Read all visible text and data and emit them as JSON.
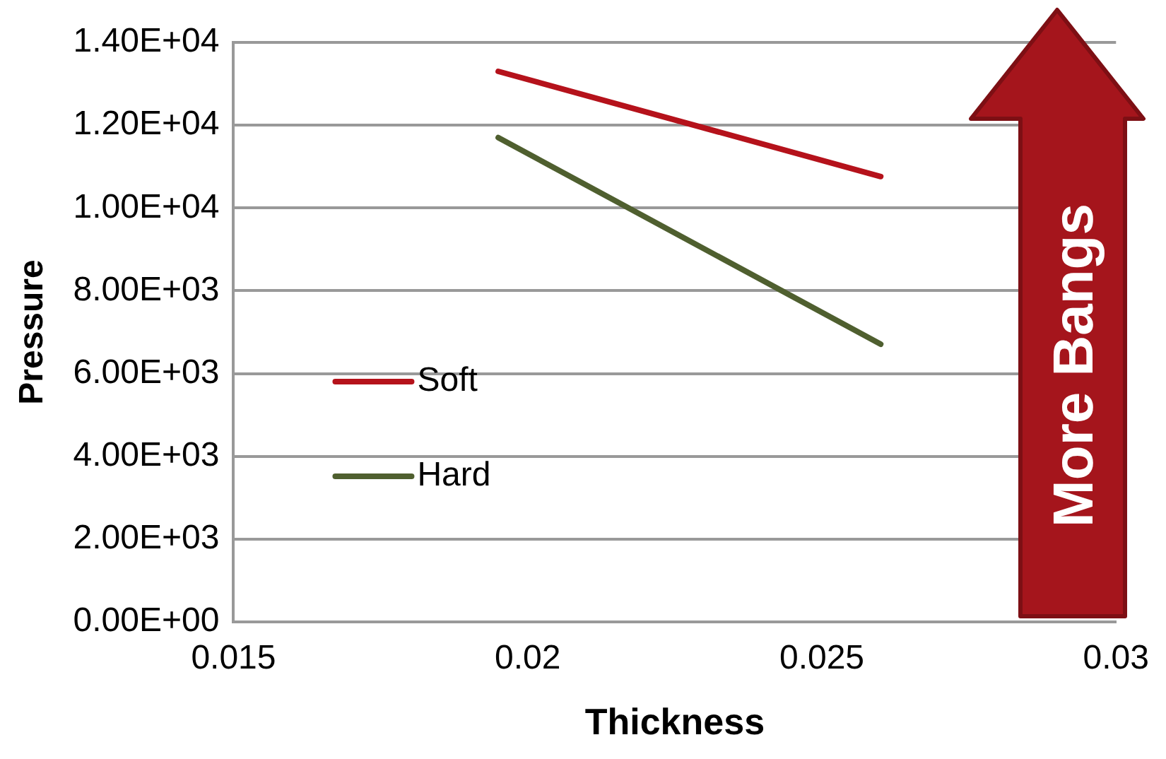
{
  "chart_data": {
    "type": "line",
    "xlabel": "Thickness",
    "ylabel": "Pressure",
    "x": [
      0.0195,
      0.026
    ],
    "series": [
      {
        "name": "Soft",
        "color": "#b5121b",
        "values": [
          13300,
          10760
        ]
      },
      {
        "name": "Hard",
        "color": "#4f5f2f",
        "values": [
          11700,
          6710
        ]
      }
    ],
    "xlim": [
      0.015,
      0.03
    ],
    "xticks": [
      0.015,
      0.02,
      0.025,
      0.03
    ],
    "ylim": [
      0,
      14000
    ],
    "yticks": [
      {
        "value": 0,
        "label": "0.00E+00"
      },
      {
        "value": 2000,
        "label": "2.00E+03"
      },
      {
        "value": 4000,
        "label": "4.00E+03"
      },
      {
        "value": 6000,
        "label": "6.00E+03"
      },
      {
        "value": 8000,
        "label": "8.00E+03"
      },
      {
        "value": 10000,
        "label": "1.00E+04"
      },
      {
        "value": 12000,
        "label": "1.20E+04"
      },
      {
        "value": 14000,
        "label": "1.40E+04"
      }
    ],
    "grid": "y",
    "legend": "left",
    "marker": "none",
    "line_style": "solid",
    "annotations": [
      "More Bangs"
    ]
  }
}
